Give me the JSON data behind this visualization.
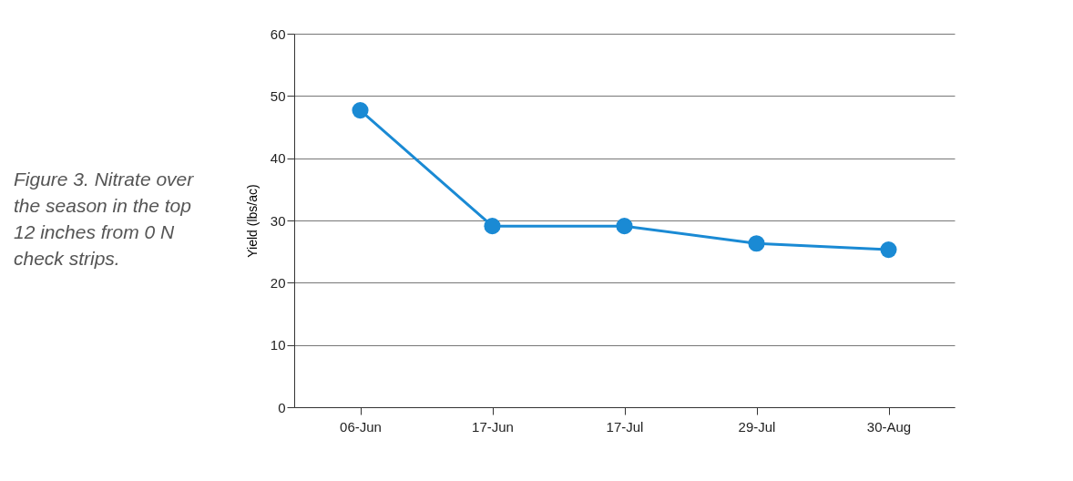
{
  "chart_data": {
    "type": "line",
    "ylabel": "Yield (lbs/ac)",
    "annotations": [
      "Figure 3. Nitrate over the season in the top 12 inches from 0 N check strips."
    ],
    "categories": [
      "06-Jun",
      "17-Jun",
      "17-Jul",
      "29-Jul",
      "30-Aug"
    ],
    "series": [
      {
        "color": "#1a8ad4",
        "values": [
          47.7,
          29.1,
          29.1,
          26.3,
          25.3
        ]
      }
    ],
    "ylim": [
      0,
      60
    ],
    "yticks": [
      0,
      10,
      20,
      30,
      40,
      50,
      60
    ],
    "grid": "y",
    "marker": "circle",
    "line_style": "solid"
  }
}
